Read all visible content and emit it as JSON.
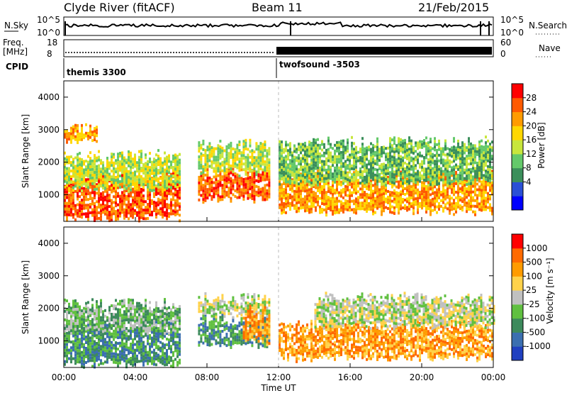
{
  "header": {
    "station": "Clyde River (fitACF)",
    "beam": "Beam 11",
    "date": "21/Feb/2015"
  },
  "strip_labels": {
    "nsky": "N.Sky",
    "nsearch": "N.Search",
    "freq": "Freq.",
    "mhz": "[MHz]",
    "nave": "Nave",
    "cpid": "CPID",
    "left_1e5": "10^5",
    "left_1e0": "10^0",
    "right_1e5": "10^5",
    "right_1e0": "10^0",
    "freq_hi": "18",
    "freq_lo": "8",
    "nave_hi": "60",
    "nave_lo": "0"
  },
  "cpid_segments": [
    {
      "label": "themis 3300",
      "start_hour": 0
    },
    {
      "label": "twofsound -3503",
      "start_hour": 12
    }
  ],
  "chart_data": [
    {
      "type": "heatmap",
      "panel": "power",
      "xlabel": "",
      "ylabel": "Slant Range [km]",
      "xlim": [
        0,
        24
      ],
      "ylim": [
        180,
        4500
      ],
      "y_ticks": [
        1000,
        2000,
        3000,
        4000
      ],
      "colorbar_label": "Power [dB]",
      "colorbar_ticks": [
        "28",
        "24",
        "20",
        "16",
        "12",
        "8",
        "4"
      ],
      "colorbar_colors": [
        "#0000ff",
        "#2a4fd6",
        "#3b8f5b",
        "#64c96a",
        "#c8e63c",
        "#ffd700",
        "#ff9b00",
        "#ff5a00",
        "#ff0000"
      ],
      "bands": [
        {
          "x0": 0.0,
          "x1": 6.5,
          "y0": 300,
          "y1": 1700,
          "level": 7
        },
        {
          "x0": 0.0,
          "x1": 6.5,
          "y0": 1200,
          "y1": 2300,
          "level": 4
        },
        {
          "x0": 0.0,
          "x1": 1.8,
          "y0": 2700,
          "y1": 3100,
          "level": 6
        },
        {
          "x0": 7.5,
          "x1": 11.5,
          "y0": 900,
          "y1": 1800,
          "level": 7
        },
        {
          "x0": 7.5,
          "x1": 11.5,
          "y0": 1700,
          "y1": 2600,
          "level": 4
        },
        {
          "x0": 12.0,
          "x1": 24.0,
          "y0": 500,
          "y1": 1700,
          "level": 6
        },
        {
          "x0": 12.0,
          "x1": 24.0,
          "y0": 1400,
          "y1": 2700,
          "level": 3
        }
      ]
    },
    {
      "type": "heatmap",
      "panel": "velocity",
      "xlabel": "Time UT",
      "ylabel": "Slant Range [km]",
      "xlim": [
        0,
        24
      ],
      "ylim": [
        180,
        4500
      ],
      "y_ticks": [
        1000,
        2000,
        3000,
        4000
      ],
      "x_ticks": [
        "00:00",
        "04:00",
        "08:00",
        "12:00",
        "16:00",
        "20:00",
        "00:00"
      ],
      "colorbar_label": "Velocity [m s⁻¹]",
      "colorbar_ticks": [
        "1000",
        "500",
        "100",
        "25",
        "-25",
        "-100",
        "-500",
        "-1000"
      ],
      "colorbar_colors": [
        "#2040c0",
        "#3b6fb0",
        "#3d8a5c",
        "#60c040",
        "#c0c0c0",
        "#ffd24a",
        "#ff9b00",
        "#ff6a00",
        "#ff0000"
      ],
      "bands": [
        {
          "x0": 0.0,
          "x1": 6.5,
          "y0": 300,
          "y1": 1600,
          "level": 2
        },
        {
          "x0": 0.0,
          "x1": 6.5,
          "y0": 1300,
          "y1": 2200,
          "level": 3
        },
        {
          "x0": 7.5,
          "x1": 11.5,
          "y0": 900,
          "y1": 1800,
          "level": 2
        },
        {
          "x0": 7.5,
          "x1": 11.5,
          "y0": 1800,
          "y1": 2400,
          "level": 4
        },
        {
          "x0": 10.0,
          "x1": 11.5,
          "y0": 1000,
          "y1": 2000,
          "level": 6
        },
        {
          "x0": 12.0,
          "x1": 24.0,
          "y0": 500,
          "y1": 1600,
          "level": 6
        },
        {
          "x0": 14.0,
          "x1": 24.0,
          "y0": 1500,
          "y1": 2400,
          "level": 4
        }
      ]
    }
  ]
}
